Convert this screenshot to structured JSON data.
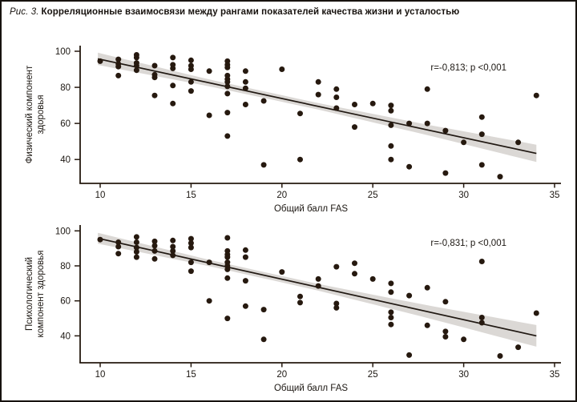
{
  "figure": {
    "title_prefix": "Рис. 3.",
    "title_text": "Корреляционные взаимосвязи между рангами показателей качества жизни и усталостью"
  },
  "colors": {
    "dot": "#26190f",
    "line": "#201812",
    "band": "#dbd8d5",
    "axis": "#25190f",
    "text": "#1c1712"
  },
  "chart_data": [
    {
      "type": "scatter",
      "name": "physical-component-vs-fas",
      "ylabel_line1": "Физический компонент",
      "ylabel_line2": "здоровья",
      "xlabel": "Общий балл FAS",
      "annotation": "r=-0,813; p <0,001",
      "xticks": [
        10,
        15,
        20,
        25,
        30,
        35
      ],
      "yticks": [
        40,
        60,
        80,
        100
      ],
      "xlim": [
        8.9,
        35.3
      ],
      "ylim": [
        26.5,
        103
      ],
      "grid": false,
      "regression": {
        "x1": 9.87,
        "y1": 95.8,
        "x2": 34.0,
        "y2": 43.4
      },
      "band_halfwidth": {
        "x": [
          9.87,
          16,
          22,
          28,
          34
        ],
        "half": [
          3.4,
          1.9,
          1.8,
          2.9,
          4.8
        ]
      },
      "points": [
        [
          10,
          94.5
        ],
        [
          11,
          95.5
        ],
        [
          11,
          93
        ],
        [
          11,
          91.5
        ],
        [
          11,
          86.5
        ],
        [
          12,
          98
        ],
        [
          12,
          96.5
        ],
        [
          12,
          93.5
        ],
        [
          12,
          92
        ],
        [
          12,
          89.5
        ],
        [
          13,
          92
        ],
        [
          13,
          87
        ],
        [
          13,
          85.5
        ],
        [
          13,
          75.5
        ],
        [
          14,
          96.5
        ],
        [
          14,
          92.5
        ],
        [
          14,
          90.5
        ],
        [
          14,
          81
        ],
        [
          14,
          71
        ],
        [
          15,
          95
        ],
        [
          15,
          92
        ],
        [
          15,
          90
        ],
        [
          15,
          83
        ],
        [
          15,
          78
        ],
        [
          16,
          89
        ],
        [
          16,
          64.5
        ],
        [
          17,
          94.5
        ],
        [
          17,
          92.5
        ],
        [
          17,
          91
        ],
        [
          17,
          86.5
        ],
        [
          17,
          84.5
        ],
        [
          17,
          83
        ],
        [
          17,
          80.5
        ],
        [
          17,
          76.5
        ],
        [
          17,
          66
        ],
        [
          17,
          53
        ],
        [
          18,
          89
        ],
        [
          18,
          83
        ],
        [
          18,
          79.5
        ],
        [
          18,
          70.5
        ],
        [
          19,
          72.5
        ],
        [
          19,
          37
        ],
        [
          20,
          90
        ],
        [
          21,
          65.5
        ],
        [
          21,
          40
        ],
        [
          22,
          83
        ],
        [
          22,
          76
        ],
        [
          23,
          79
        ],
        [
          23,
          74.5
        ],
        [
          23,
          68.5
        ],
        [
          24,
          70.5
        ],
        [
          24,
          58
        ],
        [
          25,
          71
        ],
        [
          26,
          70
        ],
        [
          26,
          67
        ],
        [
          26,
          59
        ],
        [
          26,
          47.5
        ],
        [
          26,
          40
        ],
        [
          27,
          60
        ],
        [
          27,
          36
        ],
        [
          28,
          79
        ],
        [
          28,
          60
        ],
        [
          29,
          56
        ],
        [
          29,
          32.5
        ],
        [
          30,
          49.5
        ],
        [
          31,
          63.5
        ],
        [
          31,
          54
        ],
        [
          31,
          37
        ],
        [
          32,
          30.5
        ],
        [
          33,
          49.5
        ],
        [
          34,
          75.5
        ]
      ]
    },
    {
      "type": "scatter",
      "name": "psychological-component-vs-fas",
      "ylabel_line1": "Психологический",
      "ylabel_line2": "компонент здоровья",
      "xlabel": "Общий балл FAS",
      "annotation": "r=-0,831; p <0,001",
      "xticks": [
        10,
        15,
        20,
        25,
        30,
        35
      ],
      "yticks": [
        40,
        60,
        80,
        100
      ],
      "xlim": [
        8.9,
        35.3
      ],
      "ylim": [
        24.5,
        103
      ],
      "grid": false,
      "regression": {
        "x1": 9.87,
        "y1": 95.8,
        "x2": 34.0,
        "y2": 40.0
      },
      "band_halfwidth": {
        "x": [
          9.87,
          16,
          22,
          28,
          34
        ],
        "half": [
          3.1,
          1.8,
          1.9,
          3.6,
          6.2
        ]
      },
      "points": [
        [
          10,
          95
        ],
        [
          11,
          93.5
        ],
        [
          11,
          91
        ],
        [
          11,
          87
        ],
        [
          12,
          96.5
        ],
        [
          12,
          93.5
        ],
        [
          12,
          90.5
        ],
        [
          12,
          88
        ],
        [
          12,
          85
        ],
        [
          13,
          94
        ],
        [
          13,
          91.5
        ],
        [
          13,
          88.5
        ],
        [
          13,
          84
        ],
        [
          14,
          94.5
        ],
        [
          14,
          91
        ],
        [
          14,
          88.5
        ],
        [
          14,
          86
        ],
        [
          15,
          95.5
        ],
        [
          15,
          93
        ],
        [
          15,
          90.5
        ],
        [
          15,
          82
        ],
        [
          15,
          77
        ],
        [
          16,
          82
        ],
        [
          16,
          60
        ],
        [
          17,
          96
        ],
        [
          17,
          88.5
        ],
        [
          17,
          86.5
        ],
        [
          17,
          85
        ],
        [
          17,
          82
        ],
        [
          17,
          80
        ],
        [
          17,
          78
        ],
        [
          17,
          73
        ],
        [
          17,
          50
        ],
        [
          18,
          89
        ],
        [
          18,
          85
        ],
        [
          18,
          71.5
        ],
        [
          18,
          57
        ],
        [
          19,
          55
        ],
        [
          19,
          38
        ],
        [
          20,
          76.5
        ],
        [
          21,
          62.5
        ],
        [
          21,
          59
        ],
        [
          22,
          72.5
        ],
        [
          22,
          68.5
        ],
        [
          23,
          79.5
        ],
        [
          23,
          58.5
        ],
        [
          23,
          56
        ],
        [
          24,
          81.5
        ],
        [
          24,
          75.5
        ],
        [
          25,
          72.5
        ],
        [
          26,
          70
        ],
        [
          26,
          65
        ],
        [
          26,
          53.5
        ],
        [
          26,
          50.5
        ],
        [
          26,
          46.5
        ],
        [
          27,
          63
        ],
        [
          27,
          29
        ],
        [
          28,
          67.5
        ],
        [
          28,
          46
        ],
        [
          29,
          59.5
        ],
        [
          29,
          42.5
        ],
        [
          29,
          39.5
        ],
        [
          30,
          38
        ],
        [
          31,
          82.5
        ],
        [
          31,
          50.5
        ],
        [
          31,
          47.5
        ],
        [
          32,
          28.5
        ],
        [
          33,
          33.5
        ],
        [
          34,
          53
        ]
      ]
    }
  ]
}
